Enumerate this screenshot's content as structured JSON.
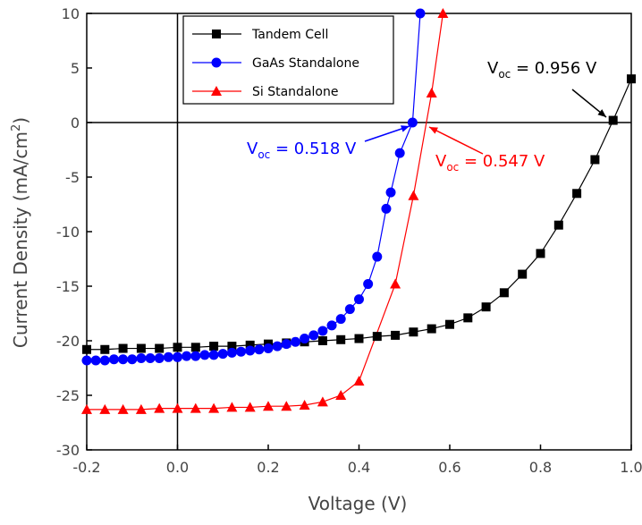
{
  "chart_data": {
    "type": "line",
    "xlabel": "Voltage (V)",
    "ylabel": {
      "text": "Current Density (mA/cm",
      "sup": "2",
      "tail": ")"
    },
    "xlim": [
      -0.2,
      1.0
    ],
    "ylim": [
      -30,
      10
    ],
    "xticks": [
      -0.2,
      {
        "value": 0,
        "label": "0.0"
      },
      0.2,
      0.4,
      0.6,
      0.8,
      {
        "value": 1,
        "label": "1.0"
      }
    ],
    "yticks": [
      -30,
      -25,
      -20,
      -15,
      -10,
      -5,
      0,
      5,
      10
    ],
    "zero_lines": true,
    "series": [
      {
        "name": "Tandem Cell",
        "color": "#000000",
        "marker": "square",
        "x": [
          -0.2,
          -0.16,
          -0.12,
          -0.08,
          -0.04,
          0,
          0.04,
          0.08,
          0.12,
          0.16,
          0.2,
          0.24,
          0.28,
          0.32,
          0.36,
          0.4,
          0.44,
          0.48,
          0.52,
          0.56,
          0.6,
          0.64,
          0.68,
          0.72,
          0.76,
          0.8,
          0.84,
          0.88,
          0.92,
          0.96,
          1.0
        ],
        "values": [
          -20.8,
          -20.8,
          -20.7,
          -20.7,
          -20.7,
          -20.6,
          -20.6,
          -20.5,
          -20.5,
          -20.4,
          -20.3,
          -20.2,
          -20.1,
          -20.0,
          -19.9,
          -19.8,
          -19.6,
          -19.5,
          -19.2,
          -18.9,
          -18.5,
          -17.9,
          -16.9,
          -15.6,
          -13.9,
          -12.0,
          -9.4,
          -6.5,
          -3.4,
          0.2,
          4.0
        ]
      },
      {
        "name": "GaAs Standalone",
        "color": "#0000ff",
        "marker": "circle",
        "x": [
          -0.2,
          -0.18,
          -0.16,
          -0.14,
          -0.12,
          -0.1,
          -0.08,
          -0.06,
          -0.04,
          -0.02,
          0,
          0.02,
          0.04,
          0.06,
          0.08,
          0.1,
          0.12,
          0.14,
          0.16,
          0.18,
          0.2,
          0.22,
          0.24,
          0.26,
          0.28,
          0.3,
          0.32,
          0.34,
          0.36,
          0.38,
          0.4,
          0.42,
          0.44,
          0.46,
          0.47,
          0.49,
          0.518,
          0.535
        ],
        "values": [
          -21.8,
          -21.8,
          -21.8,
          -21.7,
          -21.7,
          -21.7,
          -21.6,
          -21.6,
          -21.6,
          -21.5,
          -21.5,
          -21.4,
          -21.4,
          -21.3,
          -21.3,
          -21.2,
          -21.1,
          -21.0,
          -20.9,
          -20.8,
          -20.7,
          -20.5,
          -20.3,
          -20.1,
          -19.8,
          -19.5,
          -19.1,
          -18.6,
          -18.0,
          -17.1,
          -16.2,
          -14.8,
          -12.3,
          -7.9,
          -6.4,
          -2.8,
          0,
          10
        ]
      },
      {
        "name": "Si Standalone",
        "color": "#ff0000",
        "marker": "triangle",
        "x": [
          -0.2,
          -0.16,
          -0.12,
          -0.08,
          -0.04,
          0,
          0.04,
          0.08,
          0.12,
          0.16,
          0.2,
          0.24,
          0.28,
          0.32,
          0.36,
          0.4,
          0.48,
          0.52,
          0.56,
          0.585
        ],
        "values": [
          -26.3,
          -26.3,
          -26.3,
          -26.3,
          -26.2,
          -26.2,
          -26.2,
          -26.2,
          -26.1,
          -26.1,
          -26.0,
          -26.0,
          -25.9,
          -25.6,
          -25.0,
          -23.7,
          -14.8,
          -6.7,
          2.7,
          10
        ]
      }
    ],
    "annotations": [
      {
        "text": "V",
        "sub": "oc",
        "tail": " = 0.956 V",
        "color": "#000000"
      },
      {
        "text": "V",
        "sub": "oc",
        "tail": " = 0.518 V",
        "color": "#0000ff"
      },
      {
        "text": "V",
        "sub": "oc",
        "tail": " = 0.547 V",
        "color": "#ff0000"
      }
    ]
  }
}
